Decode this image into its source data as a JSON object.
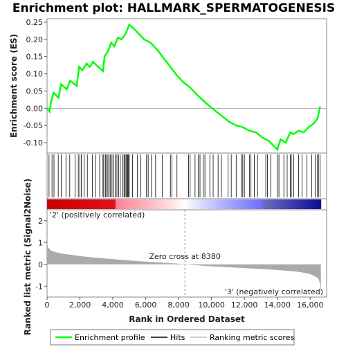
{
  "chart_data": {
    "type": "line",
    "title": "Enrichment plot: HALLMARK_SPERMATOGENESIS",
    "panels": {
      "enrichment": {
        "ylabel": "Enrichment score (ES)",
        "ylim": [
          -0.13,
          0.26
        ],
        "yticks": [
          -0.1,
          -0.05,
          0.0,
          0.05,
          0.1,
          0.15,
          0.2,
          0.25
        ],
        "ytick_labels": [
          "-0.10",
          "-0.05",
          "0.00",
          "0.05",
          "0.10",
          "0.15",
          "0.20",
          "0.25"
        ],
        "series": [
          {
            "name": "Enrichment profile",
            "color": "#00ff00",
            "x": [
              0,
              150,
              250,
              400,
              700,
              850,
              1200,
              1400,
              1800,
              1950,
              2150,
              2400,
              2600,
              2800,
              3000,
              3400,
              3500,
              3700,
              3900,
              4100,
              4300,
              4500,
              4700,
              4850,
              5000,
              5300,
              5600,
              5900,
              6300,
              6700,
              7100,
              7500,
              7900,
              8300,
              8700,
              9100,
              9500,
              9900,
              10300,
              10700,
              11100,
              11500,
              11900,
              12300,
              12700,
              13100,
              13500,
              13800,
              14000,
              14200,
              14500,
              14800,
              15000,
              15300,
              15600,
              15900,
              16200,
              16450,
              16600
            ],
            "y": [
              0.0,
              -0.01,
              0.02,
              0.045,
              0.03,
              0.07,
              0.055,
              0.08,
              0.065,
              0.12,
              0.11,
              0.13,
              0.12,
              0.135,
              0.125,
              0.108,
              0.15,
              0.165,
              0.19,
              0.18,
              0.205,
              0.2,
              0.21,
              0.225,
              0.243,
              0.23,
              0.215,
              0.2,
              0.19,
              0.17,
              0.145,
              0.12,
              0.095,
              0.075,
              0.06,
              0.04,
              0.022,
              0.005,
              -0.01,
              -0.025,
              -0.04,
              -0.05,
              -0.055,
              -0.065,
              -0.07,
              -0.085,
              -0.095,
              -0.11,
              -0.12,
              -0.09,
              -0.1,
              -0.07,
              -0.075,
              -0.065,
              -0.07,
              -0.055,
              -0.045,
              -0.03,
              0.005
            ]
          }
        ]
      },
      "hits": {
        "positions": [
          120,
          300,
          420,
          680,
          860,
          1150,
          1380,
          1700,
          1900,
          2000,
          2080,
          2250,
          2450,
          2750,
          2950,
          3200,
          3400,
          3450,
          3550,
          3620,
          3700,
          3780,
          3860,
          3950,
          4050,
          4150,
          4250,
          4350,
          4450,
          4600,
          4680,
          4740,
          4800,
          4850,
          4900,
          4950,
          5000,
          5200,
          5500,
          5700,
          6050,
          6150,
          6350,
          6600,
          7000,
          7500,
          7600,
          7900,
          8600,
          8700,
          9000,
          9200,
          9300,
          9500,
          9600,
          9900,
          10100,
          10400,
          10600,
          11000,
          11200,
          11500,
          11800,
          11900,
          12000,
          12300,
          12400,
          12600,
          12800,
          13300,
          13400,
          13600,
          14000,
          14100,
          14400,
          14600,
          14800,
          14850,
          15000,
          15300,
          15500,
          15800,
          16100,
          16300,
          16450,
          16500,
          16600
        ]
      },
      "ranked_metric": {
        "ylabel": "Ranked list metric (Signal2Noise)",
        "xlabel": "Rank in Ordered Dataset",
        "ylim": [
          -1.5,
          2.5
        ],
        "yticks": [
          -1,
          0,
          1,
          2
        ],
        "ytick_labels": [
          "-1",
          "0",
          "1",
          "2"
        ],
        "xlim": [
          0,
          17000
        ],
        "xticks": [
          0,
          2000,
          4000,
          6000,
          8000,
          10000,
          12000,
          14000,
          16000
        ],
        "xtick_labels": [
          "0",
          "2,000",
          "4,000",
          "6,000",
          "8,000",
          "10,000",
          "12,000",
          "14,000",
          "16,000"
        ],
        "x": [
          0,
          50,
          200,
          500,
          1000,
          2000,
          3000,
          4000,
          5000,
          6000,
          7000,
          8000,
          8380,
          9000,
          10000,
          11000,
          12000,
          13000,
          14000,
          15000,
          15500,
          16000,
          16300,
          16500,
          16600,
          16650
        ],
        "y": [
          1.0,
          0.8,
          0.65,
          0.56,
          0.48,
          0.38,
          0.3,
          0.24,
          0.18,
          0.13,
          0.08,
          0.03,
          0.0,
          -0.04,
          -0.09,
          -0.13,
          -0.17,
          -0.21,
          -0.26,
          -0.32,
          -0.37,
          -0.45,
          -0.55,
          -0.65,
          -0.9,
          -1.45
        ],
        "zero_cross": 8380,
        "zero_cross_label": "Zero cross at 8380",
        "pos_label": "'2' (positively correlated)",
        "neg_label": "'3' (negatively correlated)",
        "pos_label_color": "#d00000",
        "neg_label_color": "#0000cc",
        "fill_color": "#aaaaaa"
      }
    },
    "legend": {
      "placement": "bottom",
      "entries": [
        {
          "label": "Enrichment profile",
          "color": "#00ff00"
        },
        {
          "label": "Hits",
          "color": "#000000"
        },
        {
          "label": "Ranking metric scores",
          "color": "#bbbbbb"
        }
      ]
    }
  }
}
